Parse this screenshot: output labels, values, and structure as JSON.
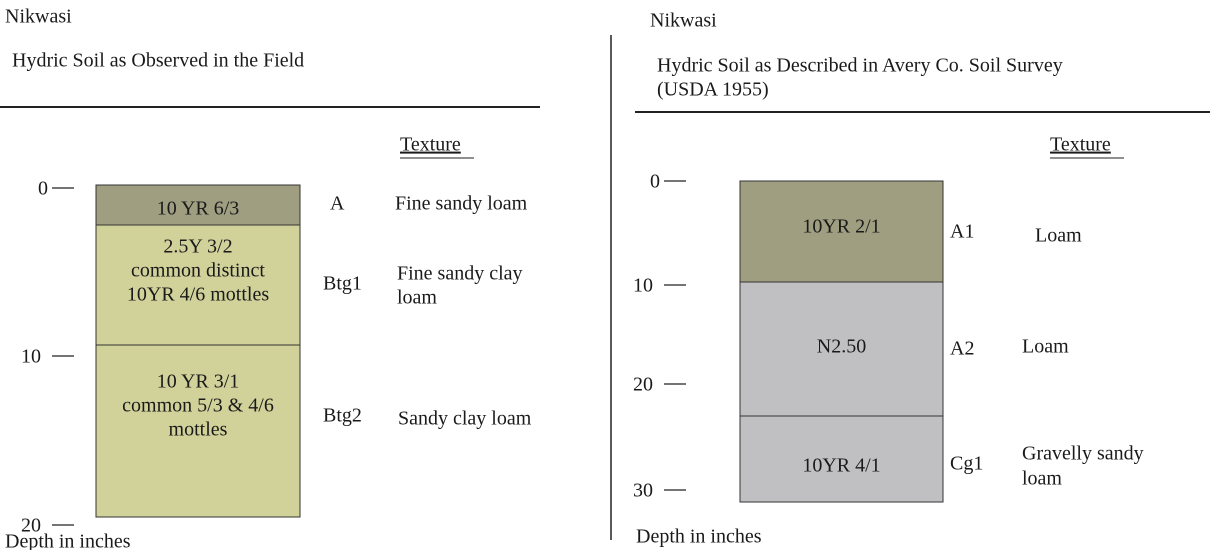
{
  "panels": [
    {
      "title": "Nikwasi",
      "subtitle": [
        "Hydric Soil as Observed in the Field"
      ],
      "texture_heading": "Texture",
      "depth_ticks": [
        0,
        10,
        20
      ],
      "horizons": [
        {
          "name": "A",
          "description": [
            "10 YR 6/3"
          ],
          "texture": [
            "Fine sandy loam"
          ]
        },
        {
          "name": "Btg1",
          "description": [
            "2.5Y 3/2",
            "common distinct",
            "10YR  4/6 mottles"
          ],
          "texture": [
            "Fine sandy clay",
            "loam"
          ]
        },
        {
          "name": "Btg2",
          "description": [
            "10 YR 3/1",
            "common 5/3 & 4/6",
            "mottles"
          ],
          "texture": [
            "Sandy clay loam"
          ]
        }
      ],
      "depth_label": "Depth in inches"
    },
    {
      "title": "Nikwasi",
      "subtitle": [
        "Hydric Soil as Described in Avery Co. Soil Survey",
        "(USDA 1955)"
      ],
      "texture_heading": "Texture",
      "depth_ticks": [
        0,
        10,
        20,
        30
      ],
      "horizons": [
        {
          "name": "A1",
          "description": [
            "10YR 2/1"
          ],
          "texture": [
            "Loam"
          ]
        },
        {
          "name": "A2",
          "description": [
            "N2.50"
          ],
          "texture": [
            "Loam"
          ]
        },
        {
          "name": "Cg1",
          "description": [
            "10YR 4/1"
          ],
          "texture": [
            "Gravelly sandy",
            "loam"
          ]
        }
      ],
      "depth_label": "Depth in inches"
    }
  ]
}
